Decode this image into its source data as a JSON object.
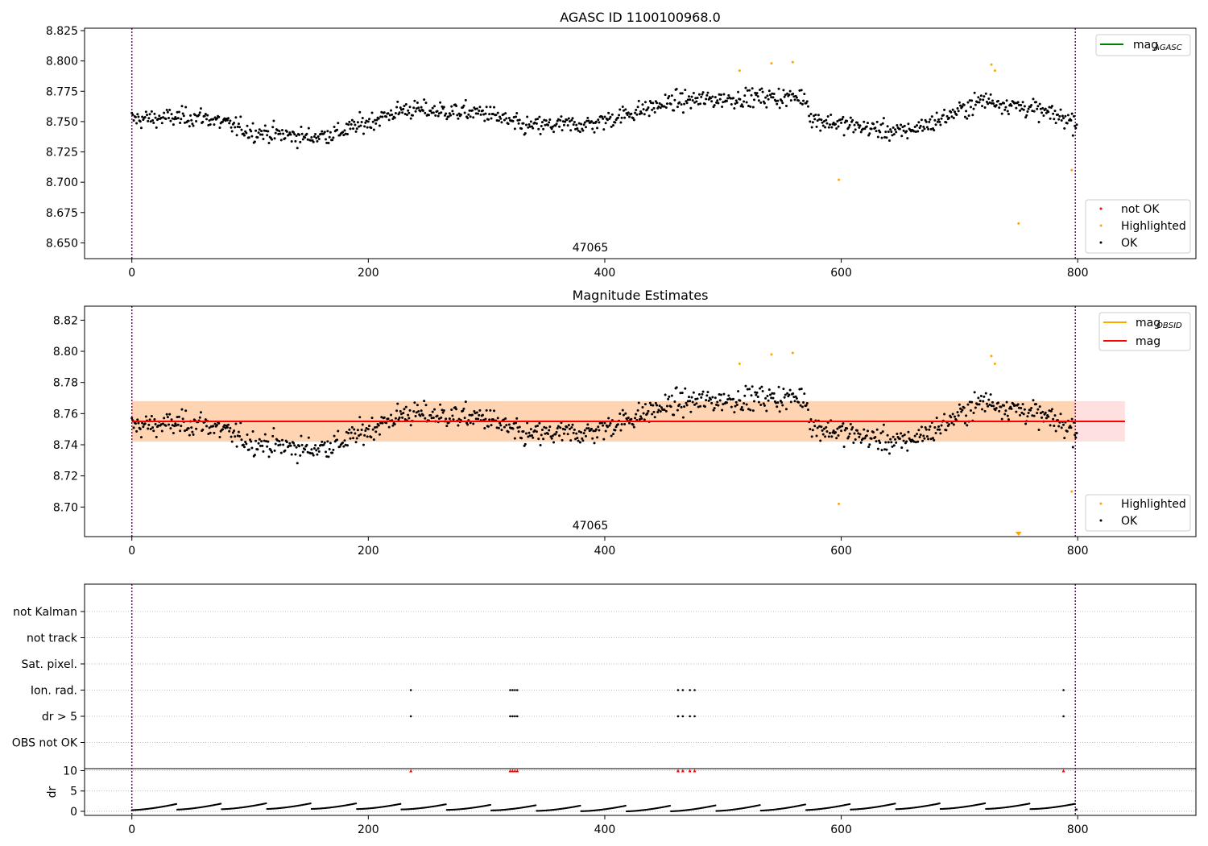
{
  "chart_data": [
    {
      "type": "scatter",
      "title": "AGASC ID 1100100968.0",
      "annotation": "47065",
      "xlim": [
        -40,
        900
      ],
      "ylim": [
        8.637,
        8.827
      ],
      "x_ticks": [
        0,
        200,
        400,
        600,
        800
      ],
      "y_ticks": [
        8.65,
        8.675,
        8.7,
        8.725,
        8.75,
        8.775,
        8.8,
        8.825
      ],
      "y_tick_labels": [
        "8.650",
        "8.675",
        "8.700",
        "8.725",
        "8.750",
        "8.775",
        "8.800",
        "8.825"
      ],
      "vlines_x": [
        0,
        798
      ],
      "legend_lines": [
        {
          "name": "mag_AGASC",
          "label_main": "mag",
          "label_sub": "AGASC",
          "color": "#008000"
        }
      ],
      "legend_points": [
        {
          "name": "not OK",
          "color": "#ff0000"
        },
        {
          "name": "Highlighted",
          "color": "#ffa500"
        },
        {
          "name": "OK",
          "color": "#000000"
        }
      ],
      "highlighted": [
        [
          514,
          8.792
        ],
        [
          541,
          8.798
        ],
        [
          559,
          8.799
        ],
        [
          727,
          8.797
        ],
        [
          730,
          8.792
        ],
        [
          598,
          8.702
        ],
        [
          750,
          8.666
        ],
        [
          795,
          8.71
        ]
      ]
    },
    {
      "type": "scatter",
      "title": "Magnitude Estimates",
      "annotation": "47065",
      "xlim": [
        -40,
        900
      ],
      "ylim": [
        8.681,
        8.829
      ],
      "x_ticks": [
        0,
        200,
        400,
        600,
        800
      ],
      "y_ticks": [
        8.7,
        8.72,
        8.74,
        8.76,
        8.78,
        8.8,
        8.82
      ],
      "y_tick_labels": [
        "8.70",
        "8.72",
        "8.74",
        "8.76",
        "8.78",
        "8.80",
        "8.82"
      ],
      "vlines_x": [
        0,
        798
      ],
      "mag_line": {
        "value": 8.755,
        "band_low": 8.742,
        "band_high": 8.768,
        "x_end": 840,
        "color": "#ff0000"
      },
      "mag_obsid": {
        "value": 8.755,
        "band_low": 8.742,
        "band_high": 8.768,
        "x_end": 798,
        "color": "#ffa500"
      },
      "legend_lines": [
        {
          "name": "mag_OBSID",
          "label_main": "mag",
          "label_sub": "OBSID",
          "color": "#ffa500"
        },
        {
          "name": "mag",
          "label_main": "mag",
          "label_sub": "",
          "color": "#ff0000"
        }
      ],
      "legend_points": [
        {
          "name": "Highlighted",
          "color": "#ffa500"
        },
        {
          "name": "OK",
          "color": "#000000"
        }
      ],
      "highlighted": [
        [
          514,
          8.792
        ],
        [
          541,
          8.798
        ],
        [
          559,
          8.799
        ],
        [
          727,
          8.797
        ],
        [
          730,
          8.792
        ],
        [
          598,
          8.702
        ],
        [
          795,
          8.71
        ]
      ],
      "off_axis_marker": {
        "x": 750,
        "color": "#ffa500"
      }
    },
    {
      "type": "scatter",
      "title": "",
      "xlim": [
        -40,
        900
      ],
      "x_ticks": [
        0,
        200,
        400,
        600,
        800
      ],
      "flag_rows": [
        "not Kalman",
        "not track",
        "Sat. pixel.",
        "Ion. rad.",
        "dr > 5",
        "OBS not OK"
      ],
      "flag_points": {
        "Ion. rad.": [
          236,
          320,
          322,
          324,
          326,
          462,
          466,
          472,
          476,
          788
        ],
        "dr > 5": [
          236,
          320,
          322,
          324,
          326,
          462,
          466,
          472,
          476,
          788
        ]
      },
      "dr_ylabel": "dr",
      "dr_ylim": [
        -1,
        10.5
      ],
      "dr_ticks": [
        0,
        5,
        10
      ],
      "dr_limit_markers_x": [
        236,
        320,
        322,
        324,
        326,
        462,
        466,
        472,
        476,
        788
      ],
      "dr_limit_color": "#ff0000",
      "vlines_x": [
        0,
        798
      ]
    }
  ]
}
